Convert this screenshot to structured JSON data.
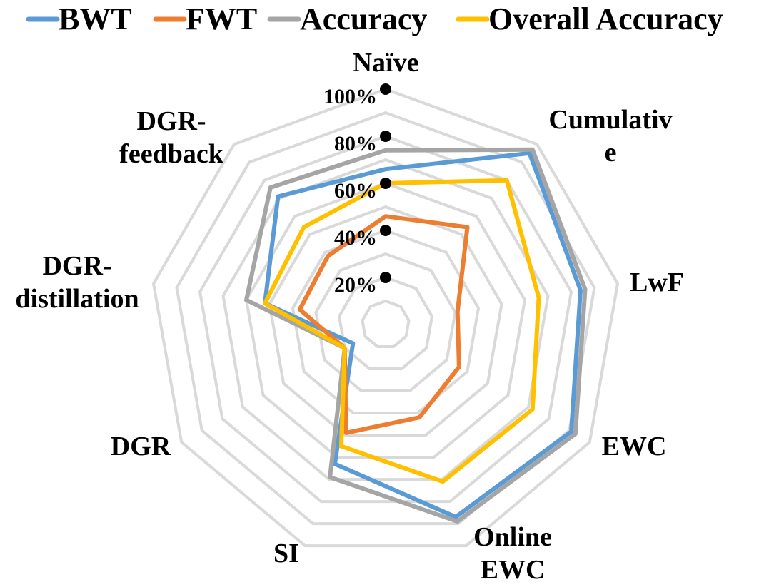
{
  "chart_data": {
    "type": "radar",
    "title": "",
    "categories": [
      "Naïve",
      "Cumulative",
      "LwF",
      "EWC",
      "Online EWC",
      "SI",
      "DGR",
      "DGR-distillation",
      "DGR-feedback"
    ],
    "category_label_lines": [
      [
        "Naïve"
      ],
      [
        "Cumulativ",
        "e"
      ],
      [
        "LwF"
      ],
      [
        "EWC"
      ],
      [
        "Online",
        "EWC"
      ],
      [
        "SI"
      ],
      [
        "DGR"
      ],
      [
        "DGR-",
        "distillation"
      ],
      [
        "DGR-",
        "feedback"
      ]
    ],
    "radial_ticks": [
      {
        "value": 20,
        "label": "20%"
      },
      {
        "value": 40,
        "label": "40%"
      },
      {
        "value": 60,
        "label": "60%"
      },
      {
        "value": 80,
        "label": "80%"
      },
      {
        "value": 100,
        "label": "100%"
      }
    ],
    "r_min": 0,
    "r_max": 100,
    "grid_levels": [
      10,
      20,
      30,
      40,
      50,
      60,
      70,
      80,
      90,
      100
    ],
    "legend_position": "top",
    "series": [
      {
        "name": "BWT",
        "color": "#5B9BD5",
        "values": [
          66,
          95,
          84,
          91,
          87,
          63,
          16,
          52,
          71
        ]
      },
      {
        "name": "FWT",
        "color": "#ED7D31",
        "values": [
          46,
          54,
          31,
          36,
          42,
          49,
          20,
          37,
          38
        ]
      },
      {
        "name": "Accuracy",
        "color": "#A5A5A5",
        "values": [
          74,
          97,
          86,
          93,
          89,
          69,
          20,
          60,
          76
        ]
      },
      {
        "name": "Overall Accuracy",
        "color": "#FFC000",
        "values": [
          60,
          80,
          66,
          72,
          71,
          55,
          20,
          52,
          54
        ]
      }
    ]
  }
}
